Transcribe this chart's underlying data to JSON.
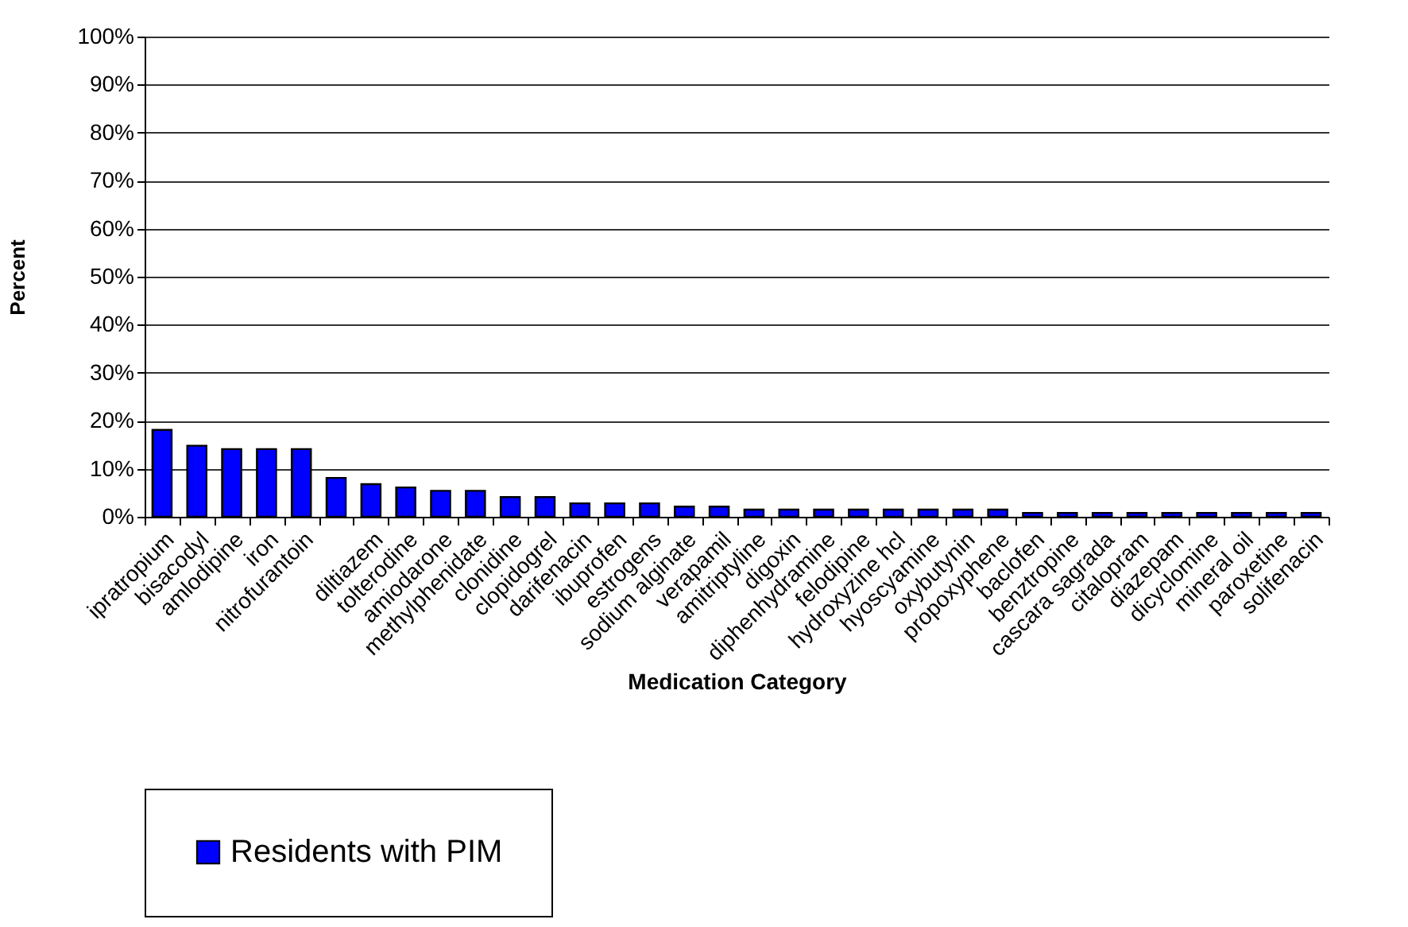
{
  "chart_data": {
    "type": "bar",
    "xlabel": "Medication Category",
    "ylabel": "Percent",
    "categories": [
      "ipratropium",
      "bisacodyl",
      "amlodipine",
      "iron",
      "nitrofurantoin",
      null,
      "diltiazem",
      "tolterodine",
      "amiodarone",
      "methylphenidate",
      "clonidine",
      "clopidogrel",
      "darifenacin",
      "ibuprofen",
      "estrogens",
      "sodium alginate",
      "verapamil",
      "amitriptyline",
      "digoxin",
      "diphenhydramine",
      "felodipine",
      "hydroxyzine hcl",
      "hyoscyamine",
      "oxybutynin",
      "propoxyphene",
      "baclofen",
      "benztropine",
      "cascara sagrada",
      "citalopram",
      "diazepam",
      "dicyclomine",
      "mineral oil",
      "paroxetine",
      "solifenacin"
    ],
    "series": [
      {
        "name": "Residents with PIM",
        "color": "#0000ff",
        "values": [
          18.1,
          14.8,
          14.1,
          14.1,
          14.1,
          8.1,
          6.8,
          6.1,
          5.4,
          5.4,
          4.1,
          4.1,
          2.8,
          2.8,
          2.8,
          2.1,
          2.1,
          1.5,
          1.5,
          1.5,
          1.5,
          1.5,
          1.5,
          1.5,
          1.5,
          0.8,
          0.8,
          0.8,
          0.8,
          0.8,
          0.8,
          0.8,
          0.8,
          0.8
        ]
      }
    ],
    "ylim": [
      0,
      100
    ],
    "yticks": [
      {
        "value": 0,
        "label": "0%"
      },
      {
        "value": 10,
        "label": "10%"
      },
      {
        "value": 20,
        "label": "20%"
      },
      {
        "value": 30,
        "label": "30%"
      },
      {
        "value": 40,
        "label": "40%"
      },
      {
        "value": 50,
        "label": "50%"
      },
      {
        "value": 60,
        "label": "60%"
      },
      {
        "value": 70,
        "label": "70%"
      },
      {
        "value": 80,
        "label": "80%"
      },
      {
        "value": 90,
        "label": "90%"
      },
      {
        "value": 100,
        "label": "100%"
      }
    ],
    "grid": "y",
    "legend": "bottom"
  }
}
